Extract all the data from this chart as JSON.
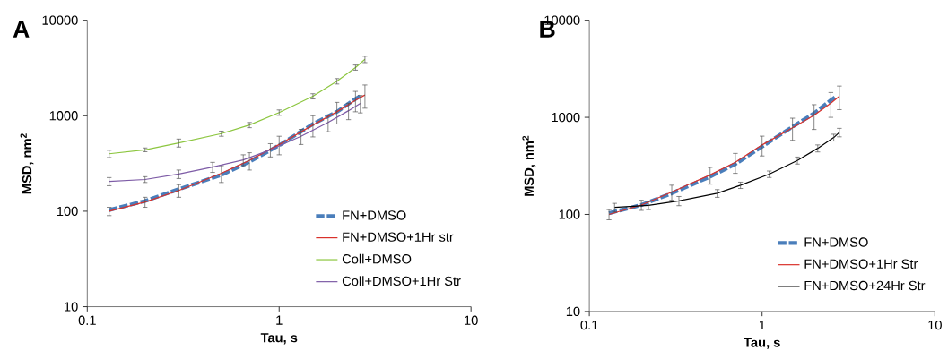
{
  "chart_data": [
    {
      "type": "line",
      "annotations": [
        "A"
      ],
      "xlabel": "Tau, s",
      "ylabel": "MSD, nm$^{2}$",
      "log": "xy",
      "xlim": [
        0.1,
        10
      ],
      "ylim": [
        10,
        10000
      ],
      "xticks": [
        0.1,
        1,
        10
      ],
      "yticks": [
        10,
        100,
        1000,
        10000
      ],
      "legend": "bottom right",
      "grid": false,
      "line_style": "solid",
      "x": [
        0.13,
        0.2,
        0.3,
        0.5,
        0.7,
        1.0,
        1.5,
        2.0,
        2.5,
        2.8
      ],
      "series": [
        {
          "name": "FN+DMSO",
          "color": "#4a7ebb",
          "line_style": "dashed",
          "x": [
            0.13,
            0.2,
            0.3,
            0.5,
            0.7,
            1.0,
            1.5,
            2.0,
            2.5,
            2.7
          ],
          "values": [
            103,
            128,
            170,
            240,
            330,
            490,
            820,
            1100,
            1500,
            1650
          ]
        },
        {
          "name": "FN+DMSO+1Hr str",
          "color": "#d9312b",
          "values": [
            100,
            125,
            165,
            250,
            340,
            500,
            800,
            1100,
            1450,
            1650
          ],
          "errors": [
            10,
            15,
            25,
            50,
            70,
            110,
            200,
            280,
            350,
            450
          ]
        },
        {
          "name": "Coll+DMSO",
          "color": "#8cc63f",
          "values": [
            400,
            440,
            520,
            650,
            800,
            1080,
            1600,
            2300,
            3200,
            3900
          ],
          "errors": [
            35,
            20,
            50,
            40,
            50,
            70,
            100,
            150,
            200,
            300
          ]
        },
        {
          "name": "Coll+DMSO+1Hr Str",
          "color": "#7d5ba6",
          "x": [
            0.13,
            0.2,
            0.3,
            0.45,
            0.65,
            0.9,
            1.3,
            1.8,
            2.3,
            2.65
          ],
          "values": [
            205,
            215,
            245,
            290,
            345,
            440,
            610,
            850,
            1130,
            1350
          ],
          "errors": [
            20,
            15,
            25,
            35,
            45,
            70,
            110,
            170,
            220,
            280
          ]
        }
      ]
    },
    {
      "type": "line",
      "annotations": [
        "B"
      ],
      "xlabel": "Tau, s",
      "ylabel": "MSD, nm$^{2}$",
      "log": "xy",
      "xlim": [
        0.1,
        10
      ],
      "ylim": [
        10,
        10000
      ],
      "xticks": [
        0.1,
        1,
        10
      ],
      "yticks": [
        10,
        100,
        1000,
        10000
      ],
      "legend": "bottom right",
      "grid": false,
      "line_style": "solid",
      "x": [
        0.13,
        0.2,
        0.3,
        0.5,
        0.7,
        1.0,
        1.5,
        2.0,
        2.5,
        2.8
      ],
      "series": [
        {
          "name": "FN+DMSO",
          "color": "#4a7ebb",
          "line_style": "dashed",
          "x": [
            0.13,
            0.2,
            0.3,
            0.5,
            0.7,
            1.0,
            1.5,
            2.0,
            2.5,
            2.7
          ],
          "values": [
            103,
            125,
            165,
            245,
            330,
            500,
            800,
            1100,
            1500,
            1650
          ]
        },
        {
          "name": "FN+DMSO+1Hr Str",
          "color": "#d9312b",
          "values": [
            100,
            125,
            170,
            255,
            345,
            520,
            780,
            1050,
            1400,
            1650
          ],
          "errors": [
            12,
            15,
            30,
            50,
            80,
            120,
            200,
            300,
            400,
            450
          ]
        },
        {
          "name": "FN+DMSO+24Hr Str",
          "color": "#000000",
          "x": [
            0.14,
            0.22,
            0.33,
            0.55,
            0.75,
            1.1,
            1.6,
            2.1,
            2.6,
            2.8
          ],
          "values": [
            118,
            124,
            138,
            165,
            200,
            260,
            360,
            480,
            620,
            700
          ],
          "errors": [
            12,
            12,
            15,
            15,
            15,
            20,
            30,
            40,
            50,
            70
          ]
        }
      ]
    }
  ]
}
